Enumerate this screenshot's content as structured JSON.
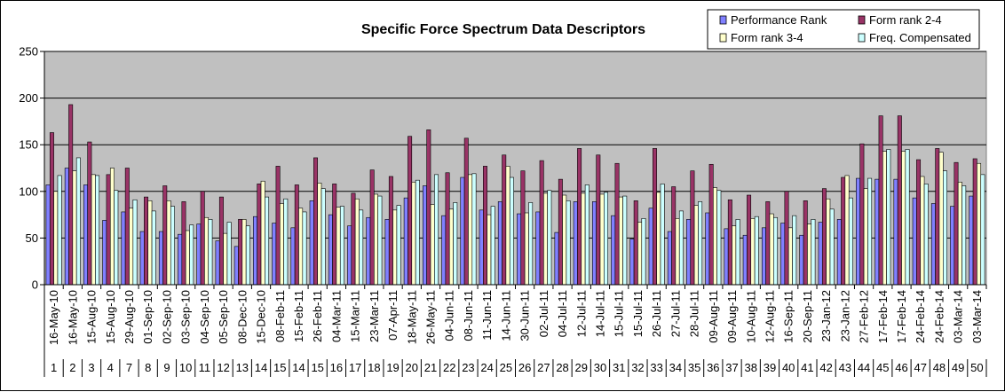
{
  "chart_data": {
    "type": "bar",
    "title": "Specific Force Spectrum Data Descriptors",
    "xlabel": "",
    "ylabel": "",
    "ylim": [
      0,
      250
    ],
    "yticks": [
      0,
      50,
      100,
      150,
      200,
      250
    ],
    "grid": true,
    "legend_position": "top-right",
    "colors": {
      "plot_background": "#c0c0c0",
      "page_background": "#ffffff",
      "gridline": "#000000"
    },
    "categories": [
      {
        "date": "16-May-10",
        "num": "1"
      },
      {
        "date": "16-May-10",
        "num": "2"
      },
      {
        "date": "15-Aug-10",
        "num": "3"
      },
      {
        "date": "15-Aug-10",
        "num": "4"
      },
      {
        "date": "29-Aug-10",
        "num": "7"
      },
      {
        "date": "01-Sep-10",
        "num": "8"
      },
      {
        "date": "02-Sep-10",
        "num": "9"
      },
      {
        "date": "03-Sep-10",
        "num": "10"
      },
      {
        "date": "04-Sep-10",
        "num": "11"
      },
      {
        "date": "05-Sep-10",
        "num": "12"
      },
      {
        "date": "08-Dec-10",
        "num": "13"
      },
      {
        "date": "15-Dec-10",
        "num": "14"
      },
      {
        "date": "08-Feb-11",
        "num": "15"
      },
      {
        "date": "15-Feb-11",
        "num": "14"
      },
      {
        "date": "26-Feb-11",
        "num": "15"
      },
      {
        "date": "04-Mar-11",
        "num": "16"
      },
      {
        "date": "15-Mar-11",
        "num": "17"
      },
      {
        "date": "23-Mar-11",
        "num": "18"
      },
      {
        "date": "07-Apr-11",
        "num": "19"
      },
      {
        "date": "18-May-11",
        "num": "20"
      },
      {
        "date": "26-May-11",
        "num": "21"
      },
      {
        "date": "04-Jun-11",
        "num": "22"
      },
      {
        "date": "08-Jun-11",
        "num": "23"
      },
      {
        "date": "11-Jun-11",
        "num": "24"
      },
      {
        "date": "14-Jun-11",
        "num": "25"
      },
      {
        "date": "30-Jun-11",
        "num": "26"
      },
      {
        "date": "02-Jul-11",
        "num": "27"
      },
      {
        "date": "04-Jul-11",
        "num": "28"
      },
      {
        "date": "12-Jul-11",
        "num": "29"
      },
      {
        "date": "14-Jul-11",
        "num": "30"
      },
      {
        "date": "15-Jul-11",
        "num": "31"
      },
      {
        "date": "15-Jul-11",
        "num": "32"
      },
      {
        "date": "26-Jul-11",
        "num": "33"
      },
      {
        "date": "27-Jul-11",
        "num": "34"
      },
      {
        "date": "28-Jul-11",
        "num": "35"
      },
      {
        "date": "09-Aug-11",
        "num": "36"
      },
      {
        "date": "09-Aug-11",
        "num": "37"
      },
      {
        "date": "10-Aug-11",
        "num": "38"
      },
      {
        "date": "12-Aug-11",
        "num": "39"
      },
      {
        "date": "16-Sep-11",
        "num": "40"
      },
      {
        "date": "20-Sep-11",
        "num": "41"
      },
      {
        "date": "23-Jan-12",
        "num": "42"
      },
      {
        "date": "23-Jan-12",
        "num": "43"
      },
      {
        "date": "27-Feb-12",
        "num": "44"
      },
      {
        "date": "17-Feb-14",
        "num": "45"
      },
      {
        "date": "17-Feb-14",
        "num": "46"
      },
      {
        "date": "24-Feb-14",
        "num": "47"
      },
      {
        "date": "24-Feb-14",
        "num": "48"
      },
      {
        "date": "03-Mar-14",
        "num": "49"
      },
      {
        "date": "03-Mar-14",
        "num": "50"
      }
    ],
    "series": [
      {
        "name": "Performance Rank",
        "color": "#8080ff",
        "values": [
          107,
          125,
          107,
          69,
          78,
          57,
          57,
          54,
          65,
          47,
          41,
          73,
          66,
          61,
          90,
          75,
          63,
          72,
          70,
          93,
          106,
          74,
          115,
          80,
          89,
          76,
          78,
          56,
          89,
          89,
          74,
          49,
          82,
          57,
          70,
          77,
          60,
          53,
          61,
          66,
          53,
          67,
          70,
          114,
          113,
          113,
          93,
          87,
          84,
          95
        ]
      },
      {
        "name": "Form rank 2-4",
        "color": "#993366",
        "values": [
          163,
          193,
          153,
          118,
          125,
          94,
          106,
          89,
          100,
          94,
          70,
          108,
          127,
          107,
          136,
          108,
          98,
          123,
          116,
          159,
          166,
          120,
          157,
          127,
          139,
          122,
          133,
          113,
          146,
          139,
          130,
          90,
          146,
          105,
          122,
          129,
          91,
          96,
          89,
          100,
          90,
          103,
          115,
          151,
          181,
          181,
          134,
          146,
          131,
          135
        ]
      },
      {
        "name": "Form rank 3-4",
        "color": "#ffffcc",
        "values": [
          100,
          122,
          118,
          125,
          82,
          90,
          90,
          58,
          72,
          55,
          70,
          111,
          87,
          82,
          109,
          83,
          92,
          97,
          80,
          110,
          86,
          81,
          118,
          75,
          127,
          77,
          98,
          96,
          98,
          97,
          94,
          67,
          99,
          71,
          85,
          104,
          63,
          71,
          76,
          61,
          65,
          92,
          117,
          103,
          143,
          143,
          116,
          142,
          110,
          130
        ]
      },
      {
        "name": "Freq. Compensated",
        "color": "#ccffff",
        "values": [
          117,
          136,
          117,
          101,
          91,
          79,
          84,
          64,
          70,
          67,
          63,
          94,
          92,
          78,
          103,
          84,
          80,
          95,
          85,
          112,
          118,
          88,
          119,
          84,
          115,
          88,
          101,
          90,
          107,
          99,
          95,
          71,
          108,
          79,
          89,
          101,
          70,
          73,
          72,
          74,
          70,
          81,
          93,
          114,
          145,
          145,
          108,
          122,
          106,
          118
        ]
      }
    ]
  }
}
